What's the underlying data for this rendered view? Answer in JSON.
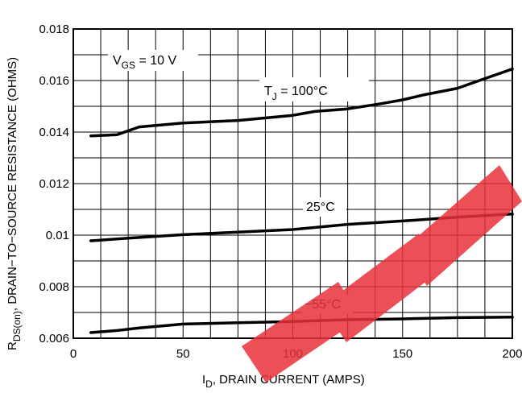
{
  "chart_data": {
    "type": "line",
    "xlabel": {
      "main": "I",
      "sub": "D",
      "rest": ", DRAIN CURRENT (AMPS)"
    },
    "ylabel": {
      "main": "R",
      "sub": "DS(on)",
      "rest": ", DRAIN−TO−SOURCE RESISTANCE (OHMS)"
    },
    "xlim": [
      0,
      200
    ],
    "ylim": [
      0.006,
      0.018
    ],
    "xticks": [
      0,
      50,
      100,
      150,
      200
    ],
    "xtick_labels": [
      "0",
      "50",
      "100",
      "150",
      "200"
    ],
    "yticks": [
      0.006,
      0.008,
      0.01,
      0.012,
      0.014,
      0.016,
      0.018
    ],
    "ytick_labels": [
      "0.006",
      "0.008",
      "0.01",
      "0.012",
      "0.014",
      "0.016",
      "0.018"
    ],
    "grid": true,
    "condition_label": {
      "main": "V",
      "sub": "GS",
      "rest": " = 10 V"
    },
    "series": [
      {
        "name_main": "T",
        "name_sub": "J",
        "name_rest": " = 100°C",
        "x": [
          8,
          20,
          30,
          50,
          75,
          100,
          110,
          125,
          140,
          150,
          160,
          175,
          185,
          200
        ],
        "y": [
          0.01385,
          0.0139,
          0.0142,
          0.01435,
          0.01445,
          0.01465,
          0.0148,
          0.0149,
          0.0151,
          0.01525,
          0.01545,
          0.0157,
          0.016,
          0.01645
        ]
      },
      {
        "name_main": "25°C",
        "name_sub": "",
        "name_rest": "",
        "x": [
          8,
          25,
          50,
          75,
          100,
          125,
          150,
          175,
          200
        ],
        "y": [
          0.00978,
          0.00988,
          0.01002,
          0.01012,
          0.01022,
          0.01042,
          0.01055,
          0.0107,
          0.01082
        ]
      },
      {
        "name_main": "−55°C",
        "name_sub": "",
        "name_rest": "",
        "x": [
          8,
          20,
          30,
          50,
          75,
          100,
          125,
          150,
          175,
          200
        ],
        "y": [
          0.00622,
          0.0063,
          0.0064,
          0.00655,
          0.0066,
          0.00665,
          0.00672,
          0.00675,
          0.0068,
          0.00682
        ]
      }
    ]
  }
}
